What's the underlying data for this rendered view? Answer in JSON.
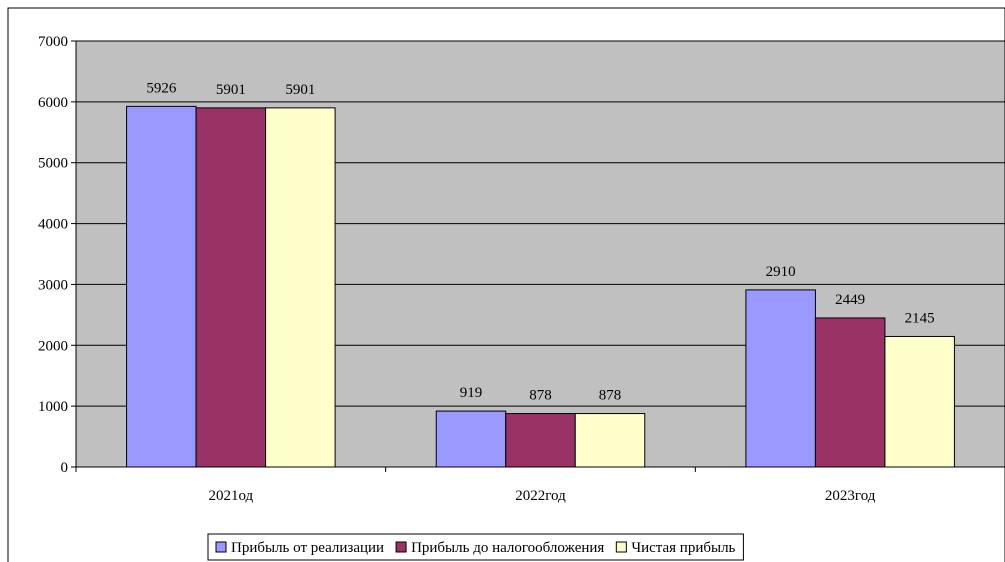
{
  "chart_data": {
    "type": "bar",
    "categories": [
      "2021од",
      "2022год",
      "2023год"
    ],
    "series": [
      {
        "name": "Прибыль от реализации",
        "values": [
          5926,
          919,
          2910
        ],
        "color": "#9999ff"
      },
      {
        "name": "Прибыль до налогообложения",
        "values": [
          5901,
          878,
          2449
        ],
        "color": "#993366"
      },
      {
        "name": "Чистая прибыль",
        "values": [
          5901,
          878,
          2145
        ],
        "color": "#ffffcc"
      }
    ],
    "yticks": [
      "0",
      "1000",
      "2000",
      "3000",
      "4000",
      "5000",
      "6000",
      "7000"
    ],
    "ylim": [
      0,
      7000
    ],
    "grid": true,
    "legend_position": "bottom",
    "plot_background": "#c0c0c0",
    "data_labels": true
  }
}
